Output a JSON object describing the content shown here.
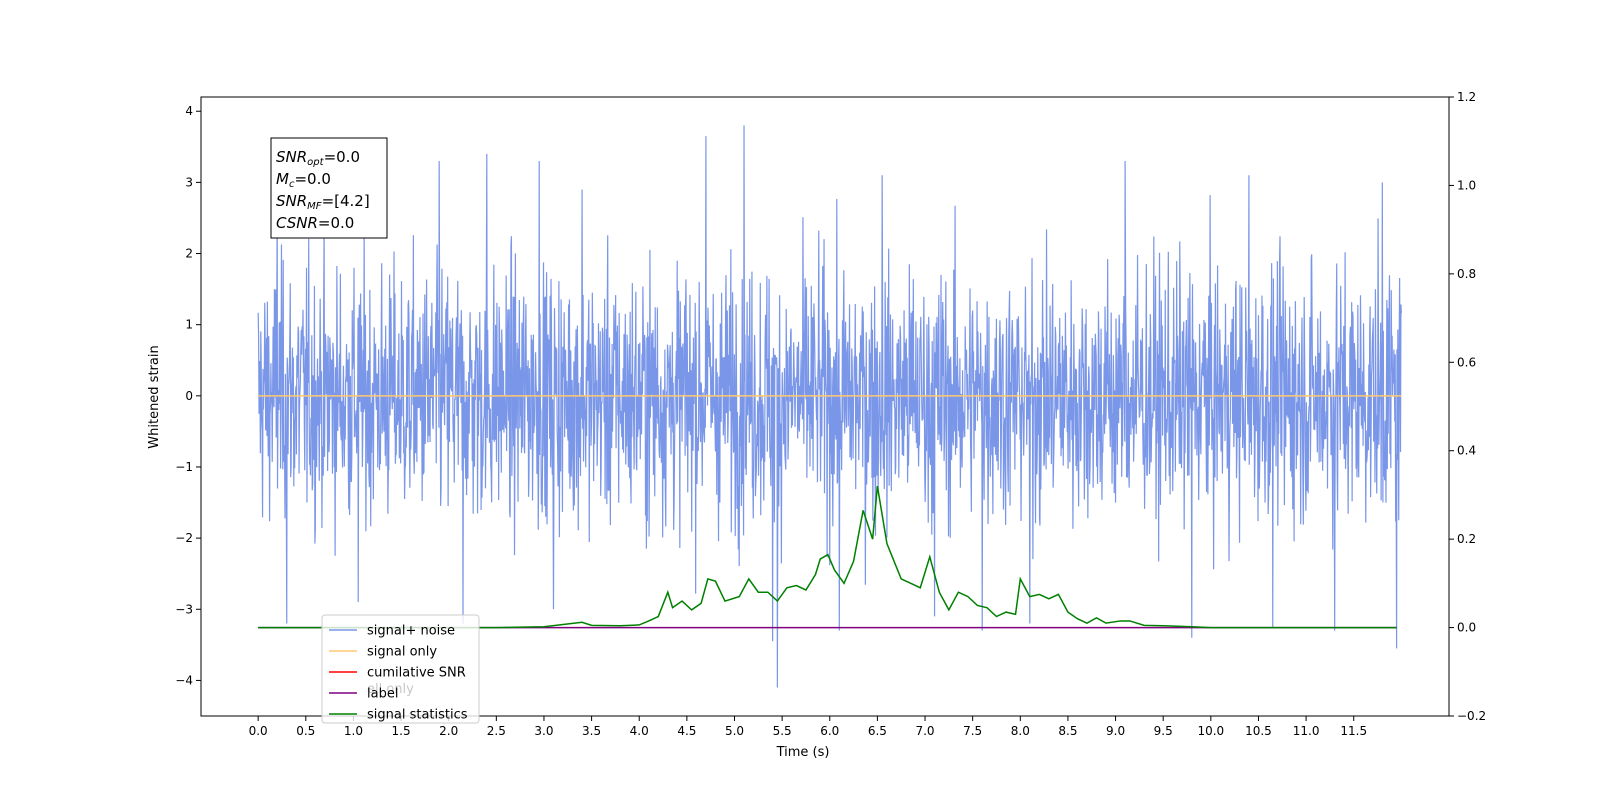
{
  "chart_data": {
    "type": "line",
    "xlabel": "Time (s)",
    "ylabel": "Whitened strain",
    "xlim": [
      -0.6,
      12.5
    ],
    "ylim": [
      -4.5,
      4.2
    ],
    "y2lim": [
      -0.2,
      1.2
    ],
    "x_ticks": [
      "0.0",
      "0.5",
      "1.0",
      "1.5",
      "2.0",
      "2.5",
      "3.0",
      "3.5",
      "4.0",
      "4.5",
      "5.0",
      "5.5",
      "6.0",
      "6.5",
      "7.0",
      "7.5",
      "8.0",
      "8.5",
      "9.0",
      "9.5",
      "10.0",
      "10.5",
      "11.0",
      "11.5"
    ],
    "x_tick_values": [
      0,
      0.5,
      1,
      1.5,
      2,
      2.5,
      3,
      3.5,
      4,
      4.5,
      5,
      5.5,
      6,
      6.5,
      7,
      7.5,
      8,
      8.5,
      9,
      9.5,
      10,
      10.5,
      11,
      11.5
    ],
    "y_ticks": [
      "4",
      "3",
      "2",
      "1",
      "0",
      "−1",
      "−2",
      "−3",
      "−4"
    ],
    "y_tick_values": [
      4,
      3,
      2,
      1,
      0,
      -1,
      -2,
      -3,
      -4
    ],
    "y2_ticks": [
      "1.2",
      "1.0",
      "0.8",
      "0.6",
      "0.4",
      "0.2",
      "0.0",
      "−0.2"
    ],
    "y2_tick_values": [
      1.2,
      1.0,
      0.8,
      0.6,
      0.4,
      0.2,
      0.0,
      -0.2
    ],
    "grid": false,
    "legend_position": "bottom-left",
    "noise": {
      "x_range": [
        0,
        12.0
      ],
      "typical_amplitude": 1.6,
      "peak_values": [
        {
          "x": 0.2,
          "y": 2.7
        },
        {
          "x": 0.3,
          "y": -3.2
        },
        {
          "x": 1.05,
          "y": -2.9
        },
        {
          "x": 1.9,
          "y": 3.3
        },
        {
          "x": 2.4,
          "y": 3.4
        },
        {
          "x": 2.15,
          "y": -3.2
        },
        {
          "x": 2.95,
          "y": 3.3
        },
        {
          "x": 3.1,
          "y": -3.0
        },
        {
          "x": 3.4,
          "y": 2.9
        },
        {
          "x": 4.7,
          "y": 3.65
        },
        {
          "x": 5.1,
          "y": 3.8
        },
        {
          "x": 5.45,
          "y": -4.1
        },
        {
          "x": 5.4,
          "y": -3.45
        },
        {
          "x": 6.1,
          "y": -3.3
        },
        {
          "x": 6.55,
          "y": 3.1
        },
        {
          "x": 7.1,
          "y": -3.1
        },
        {
          "x": 7.6,
          "y": -3.3
        },
        {
          "x": 8.1,
          "y": -3.2
        },
        {
          "x": 9.1,
          "y": 3.3
        },
        {
          "x": 9.8,
          "y": -3.4
        },
        {
          "x": 10.4,
          "y": 3.1
        },
        {
          "x": 10.65,
          "y": -3.25
        },
        {
          "x": 11.3,
          "y": -3.3
        },
        {
          "x": 11.8,
          "y": 3.0
        },
        {
          "x": 11.95,
          "y": -3.55
        }
      ]
    },
    "signal_statistics": {
      "x": [
        0,
        1,
        2,
        2.5,
        3,
        3.4,
        3.5,
        3.8,
        4,
        4.1,
        4.2,
        4.3,
        4.35,
        4.45,
        4.55,
        4.65,
        4.72,
        4.8,
        4.9,
        5.05,
        5.15,
        5.25,
        5.35,
        5.45,
        5.55,
        5.65,
        5.75,
        5.85,
        5.9,
        5.98,
        6.05,
        6.15,
        6.25,
        6.35,
        6.45,
        6.5,
        6.6,
        6.75,
        6.85,
        6.95,
        7.05,
        7.15,
        7.25,
        7.35,
        7.45,
        7.55,
        7.65,
        7.75,
        7.85,
        7.95,
        8.0,
        8.1,
        8.2,
        8.3,
        8.4,
        8.5,
        8.6,
        8.7,
        8.8,
        8.9,
        9.05,
        9.15,
        9.3,
        9.5,
        9.8,
        10,
        11,
        11.95
      ],
      "y": [
        0,
        0,
        0,
        0,
        0.002,
        0.012,
        0.005,
        0.004,
        0.006,
        0.015,
        0.025,
        0.08,
        0.045,
        0.06,
        0.04,
        0.055,
        0.11,
        0.105,
        0.06,
        0.07,
        0.11,
        0.08,
        0.08,
        0.06,
        0.09,
        0.095,
        0.085,
        0.12,
        0.155,
        0.165,
        0.13,
        0.1,
        0.15,
        0.265,
        0.2,
        0.32,
        0.19,
        0.11,
        0.1,
        0.09,
        0.16,
        0.08,
        0.04,
        0.08,
        0.07,
        0.05,
        0.045,
        0.025,
        0.035,
        0.03,
        0.11,
        0.07,
        0.075,
        0.065,
        0.075,
        0.035,
        0.02,
        0.01,
        0.022,
        0.01,
        0.015,
        0.015,
        0.005,
        0.004,
        0.002,
        0,
        0,
        0
      ]
    },
    "series": [
      {
        "name": "signal+ noise",
        "color": "#7a96e8"
      },
      {
        "name": "signal only",
        "color": "#ffc870"
      },
      {
        "name": "cumilative SNR",
        "color": "#ff0000"
      },
      {
        "name": "label",
        "color": "#800080"
      },
      {
        "name": "signal statistics",
        "color": "#008000"
      }
    ],
    "hidden_legend_text": "ell only",
    "annotation": [
      {
        "sym": "SNR",
        "sub": "opt",
        "value": "=0.0"
      },
      {
        "sym": "M",
        "sub": "c",
        "value": "=0.0"
      },
      {
        "sym": "SNR",
        "sub": "MF",
        "value": "=[4.2]"
      },
      {
        "sym": "CSNR",
        "sub": "",
        "value": "=0.0"
      }
    ]
  }
}
